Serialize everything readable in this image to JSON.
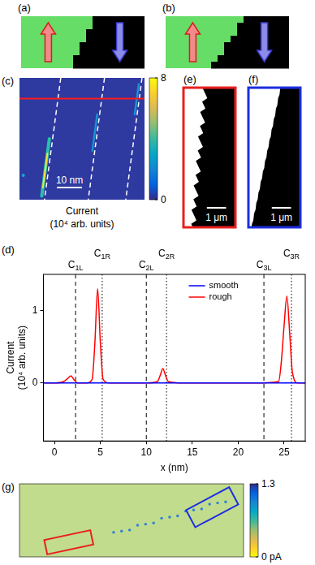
{
  "panels": {
    "a": {
      "label": "(a)"
    },
    "b": {
      "label": "(b)"
    },
    "c": {
      "label": "(c)",
      "scale_bar": "10 nm",
      "colorbar": {
        "range": [
          0,
          8
        ],
        "ticks": [
          0,
          8
        ]
      },
      "colorbar_label": [
        "Current",
        "(10⁴ arb. units)"
      ]
    },
    "e": {
      "label": "(e)",
      "scale_bar": "1 μm",
      "color": "#e8201e"
    },
    "f": {
      "label": "(f)",
      "scale_bar": "1 μm",
      "color": "#1c2fe0"
    },
    "g": {
      "label": "(g)",
      "colorbar": {
        "range": [
          0,
          1.3
        ],
        "ticks": [
          1.3,
          {
            "value": 0,
            "label": "0 pA"
          }
        ]
      }
    }
  },
  "chart_data": {
    "type": "line",
    "panel_label": "(d)",
    "x_label": "x (nm)",
    "y_label": [
      "Current",
      "(10⁴ arb. units)"
    ],
    "x": [
      -1.2,
      0,
      1,
      1.5,
      1.8,
      2.1,
      2.6,
      3.5,
      4.1,
      4.4,
      4.7,
      5.0,
      5.3,
      6,
      8,
      10,
      11.2,
      11.5,
      11.8,
      12.1,
      12.4,
      14,
      18,
      22,
      24.4,
      24.7,
      25.0,
      25.3,
      25.6,
      25.9,
      26.5,
      27.3
    ],
    "series": [
      {
        "name": "smooth",
        "color": "#0000ff",
        "values": [
          0,
          0,
          0,
          0,
          0,
          0,
          0,
          0,
          0,
          0,
          0,
          0,
          0,
          0,
          0,
          0,
          0,
          0,
          0,
          0,
          0,
          0,
          0,
          0,
          0,
          0,
          0,
          0,
          0,
          0,
          0,
          0
        ]
      },
      {
        "name": "rough",
        "color": "#ff0000",
        "values": [
          0,
          0,
          0.02,
          0.07,
          0.1,
          0.05,
          0,
          0,
          0.05,
          0.55,
          1.3,
          0.55,
          0.05,
          0,
          0,
          0,
          0.02,
          0.1,
          0.2,
          0.1,
          0.02,
          0,
          0,
          0,
          0.02,
          0.3,
          0.8,
          1.2,
          0.7,
          0.15,
          0,
          0
        ]
      }
    ],
    "xlim": [
      -1.2,
      27.3
    ],
    "xticks": [
      0,
      5,
      10,
      15,
      20,
      25
    ],
    "ylim": [
      -0.8,
      1.5
    ],
    "yticks": [
      0,
      1
    ],
    "grid": false,
    "legend": "top",
    "vlines": [
      {
        "x": 2.3,
        "label": "C1L",
        "line_style": "dashed"
      },
      {
        "x": 5.2,
        "label": "C1R",
        "line_style": "dotted"
      },
      {
        "x": 10.0,
        "label": "C2L",
        "line_style": "dashed"
      },
      {
        "x": 12.2,
        "label": "C2R",
        "line_style": "dotted"
      },
      {
        "x": 22.8,
        "label": "C3L",
        "line_style": "dashed"
      },
      {
        "x": 25.8,
        "label": "C3R",
        "line_style": "dotted"
      }
    ]
  }
}
